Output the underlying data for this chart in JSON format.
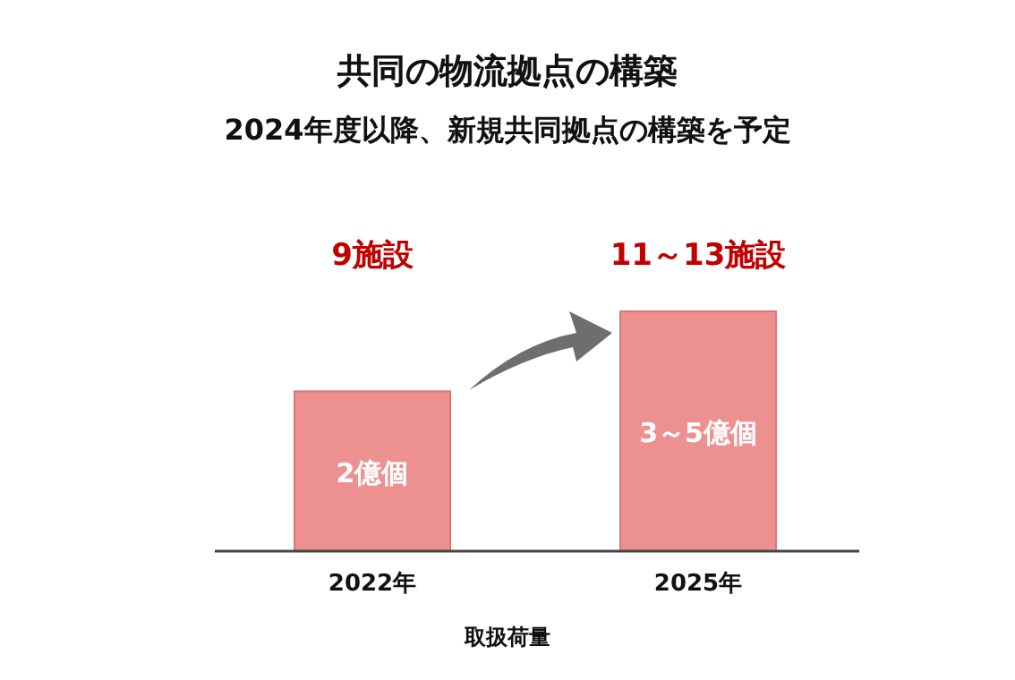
{
  "chart_data": {
    "type": "bar",
    "title": "共同の物流拠点の構築",
    "subtitle": "2024年度以降、新規共同拠点の構築を予定",
    "xlabel": "取扱荷量",
    "categories": [
      "2022年",
      "2025年"
    ],
    "values": [
      2,
      3
    ],
    "color": "#ec9090",
    "value_labels": [
      "2億個",
      "3～5億個"
    ],
    "annotations": [
      "9施設",
      "11～13施設"
    ]
  }
}
